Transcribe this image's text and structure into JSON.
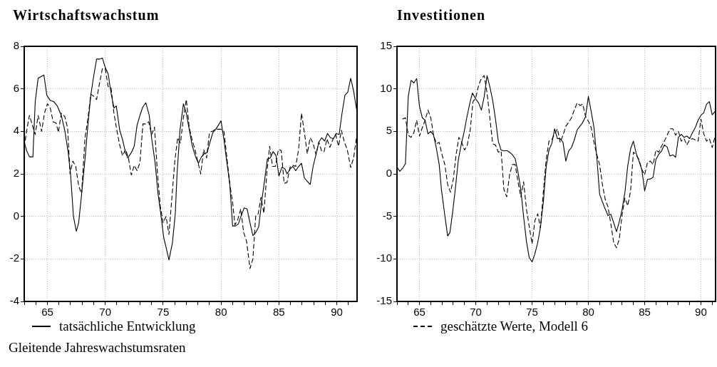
{
  "chart_data": [
    {
      "type": "line",
      "title": "Wirtschaftswachstum",
      "xlim": [
        63,
        91.75
      ],
      "ylim": [
        -4,
        8
      ],
      "xticks": [
        {
          "value": 63,
          "label": null
        },
        {
          "value": 64,
          "label": null
        },
        {
          "value": 65,
          "label": "65"
        },
        {
          "value": 66,
          "label": null
        },
        {
          "value": 67,
          "label": null
        },
        {
          "value": 68,
          "label": null
        },
        {
          "value": 69,
          "label": null
        },
        {
          "value": 70,
          "label": "70"
        },
        {
          "value": 71,
          "label": null
        },
        {
          "value": 72,
          "label": null
        },
        {
          "value": 73,
          "label": null
        },
        {
          "value": 74,
          "label": null
        },
        {
          "value": 75,
          "label": "75"
        },
        {
          "value": 76,
          "label": null
        },
        {
          "value": 77,
          "label": null
        },
        {
          "value": 78,
          "label": null
        },
        {
          "value": 79,
          "label": null
        },
        {
          "value": 80,
          "label": "80"
        },
        {
          "value": 81,
          "label": null
        },
        {
          "value": 82,
          "label": null
        },
        {
          "value": 83,
          "label": null
        },
        {
          "value": 84,
          "label": null
        },
        {
          "value": 85,
          "label": "85"
        },
        {
          "value": 86,
          "label": null
        },
        {
          "value": 87,
          "label": null
        },
        {
          "value": 88,
          "label": null
        },
        {
          "value": 89,
          "label": null
        },
        {
          "value": 90,
          "label": "90"
        },
        {
          "value": 91,
          "label": null
        }
      ],
      "yticks": [
        -4,
        -2,
        0,
        2,
        4,
        6,
        8
      ],
      "grid": true,
      "legend": "bottom",
      "marker": "none",
      "annotations": [
        "Gleitende Jahreswachstumsraten"
      ],
      "series": [
        {
          "name": "tatsächliche Entwicklung",
          "color": "#000000",
          "line_style": "solid",
          "x": [
            63.0,
            63.2,
            63.45,
            63.75,
            63.95,
            64.2,
            64.7,
            64.95,
            65.25,
            65.55,
            65.85,
            66.2,
            66.5,
            66.8,
            67.0,
            67.25,
            67.5,
            67.7,
            67.95,
            68.25,
            68.5,
            68.75,
            69.0,
            69.25,
            69.5,
            69.75,
            70.0,
            70.25,
            70.5,
            70.75,
            70.95,
            71.25,
            71.5,
            71.75,
            71.95,
            72.25,
            72.5,
            72.75,
            73.05,
            73.25,
            73.5,
            73.8,
            74.0,
            74.3,
            74.55,
            74.8,
            75.05,
            75.25,
            75.5,
            75.8,
            76.05,
            76.2,
            76.45,
            76.75,
            77.0,
            77.3,
            77.5,
            77.8,
            78.05,
            78.3,
            78.55,
            78.8,
            79.05,
            79.3,
            79.55,
            80.0,
            80.25,
            80.5,
            80.75,
            81.0,
            81.25,
            81.5,
            81.75,
            82.0,
            82.25,
            82.5,
            82.75,
            83.0,
            83.25,
            83.5,
            83.75,
            84.0,
            84.25,
            84.5,
            84.75,
            85.0,
            85.25,
            85.5,
            85.7,
            86.0,
            86.2,
            86.45,
            86.7,
            86.95,
            87.2,
            87.45,
            87.7,
            87.95,
            88.2,
            88.45,
            88.7,
            88.95,
            89.2,
            89.45,
            89.7,
            89.95,
            90.2,
            90.45,
            90.7,
            90.95,
            91.2,
            91.45,
            91.7
          ],
          "values": [
            3.5,
            3.1,
            2.8,
            2.8,
            5.4,
            6.5,
            6.65,
            5.7,
            5.45,
            5.4,
            5.2,
            4.75,
            4.05,
            3.0,
            2.0,
            0.0,
            -0.7,
            -0.3,
            1.0,
            2.7,
            4.3,
            5.7,
            6.6,
            7.4,
            7.4,
            7.45,
            7.0,
            6.7,
            5.8,
            5.1,
            5.2,
            4.05,
            3.6,
            3.0,
            2.75,
            3.0,
            3.3,
            4.3,
            4.85,
            5.15,
            5.35,
            4.75,
            3.7,
            2.55,
            1.1,
            0.1,
            -1.0,
            -1.45,
            -2.05,
            -1.25,
            0.15,
            2.0,
            4.05,
            5.3,
            4.85,
            3.95,
            3.35,
            2.8,
            2.5,
            2.8,
            2.95,
            3.0,
            3.5,
            3.95,
            4.1,
            4.5,
            3.6,
            2.55,
            1.55,
            -0.45,
            -0.45,
            -0.35,
            0.05,
            0.4,
            0.35,
            -0.3,
            -0.9,
            -0.75,
            -0.5,
            0.65,
            1.65,
            2.7,
            2.75,
            3.05,
            2.85,
            1.9,
            2.3,
            2.25,
            2.0,
            2.25,
            2.35,
            2.15,
            2.35,
            2.5,
            1.8,
            1.65,
            1.5,
            2.35,
            2.9,
            3.5,
            3.7,
            3.55,
            3.9,
            3.7,
            3.65,
            3.9,
            3.85,
            4.85,
            5.7,
            5.85,
            6.5,
            5.9,
            5.05
          ]
        },
        {
          "name": "geschätzte Werte, Modell 6",
          "color": "#000000",
          "line_style": "dashed",
          "x": [
            63.0,
            63.2,
            63.45,
            63.7,
            63.95,
            64.2,
            64.5,
            64.75,
            65.0,
            65.25,
            65.5,
            65.75,
            65.95,
            66.2,
            66.5,
            66.75,
            66.95,
            67.2,
            67.45,
            67.7,
            67.95,
            68.25,
            68.5,
            68.75,
            69.0,
            69.25,
            69.5,
            69.75,
            70.0,
            70.25,
            70.5,
            70.75,
            71.0,
            71.25,
            71.5,
            71.75,
            72.0,
            72.25,
            72.5,
            72.75,
            73.0,
            73.25,
            73.5,
            73.75,
            74.0,
            74.25,
            74.5,
            74.75,
            75.0,
            75.25,
            75.5,
            75.75,
            76.0,
            76.25,
            76.5,
            76.75,
            77.0,
            77.25,
            77.5,
            77.75,
            78.0,
            78.25,
            78.5,
            78.75,
            79.0,
            79.25,
            79.5,
            79.75,
            80.0,
            80.25,
            80.5,
            80.75,
            81.0,
            81.2,
            81.45,
            81.7,
            81.95,
            82.2,
            82.5,
            82.75,
            83.0,
            83.2,
            83.45,
            83.7,
            83.95,
            84.2,
            84.45,
            84.7,
            84.95,
            85.2,
            85.45,
            85.7,
            85.95,
            86.2,
            86.45,
            86.7,
            86.95,
            87.2,
            87.45,
            87.7,
            87.95,
            88.2,
            88.45,
            88.7,
            88.9,
            89.15,
            89.4,
            89.65,
            89.9,
            90.15,
            90.4,
            90.65,
            90.9,
            91.2,
            91.45,
            91.7
          ],
          "values": [
            3.25,
            4.0,
            4.75,
            4.3,
            3.85,
            4.75,
            4.0,
            4.85,
            5.3,
            5.1,
            4.45,
            4.4,
            3.95,
            4.85,
            4.7,
            4.15,
            2.0,
            2.6,
            2.35,
            1.45,
            1.05,
            3.7,
            4.6,
            5.75,
            5.65,
            5.5,
            6.25,
            6.95,
            6.95,
            6.1,
            6.05,
            4.85,
            4.05,
            3.35,
            2.85,
            3.15,
            2.75,
            1.95,
            2.4,
            2.15,
            2.55,
            4.35,
            4.35,
            4.45,
            3.85,
            4.2,
            2.1,
            0.5,
            -0.3,
            0.0,
            -0.85,
            0.85,
            2.55,
            3.7,
            3.45,
            4.65,
            5.5,
            4.2,
            3.6,
            3.15,
            2.55,
            2.0,
            3.15,
            2.75,
            3.95,
            4.0,
            4.1,
            4.1,
            4.1,
            4.0,
            2.8,
            1.55,
            0.65,
            -0.4,
            -0.15,
            0.35,
            -0.75,
            -1.15,
            -2.45,
            -2.0,
            0.05,
            0.1,
            0.9,
            0.15,
            2.0,
            3.3,
            2.35,
            2.35,
            3.15,
            3.1,
            1.55,
            1.6,
            2.3,
            2.4,
            2.35,
            3.15,
            4.85,
            3.95,
            2.95,
            3.7,
            3.45,
            2.9,
            3.5,
            3.05,
            3.05,
            3.65,
            3.25,
            3.6,
            3.85,
            3.3,
            4.05,
            3.5,
            3.15,
            2.3,
            2.75,
            3.7
          ]
        }
      ]
    },
    {
      "type": "line",
      "title": "Investitionen",
      "xlim": [
        63,
        91.3
      ],
      "ylim": [
        -15,
        15
      ],
      "xticks": [
        {
          "value": 63,
          "label": null
        },
        {
          "value": 64,
          "label": null
        },
        {
          "value": 65,
          "label": "65"
        },
        {
          "value": 66,
          "label": null
        },
        {
          "value": 67,
          "label": null
        },
        {
          "value": 68,
          "label": null
        },
        {
          "value": 69,
          "label": null
        },
        {
          "value": 70,
          "label": "70"
        },
        {
          "value": 71,
          "label": null
        },
        {
          "value": 72,
          "label": null
        },
        {
          "value": 73,
          "label": null
        },
        {
          "value": 74,
          "label": null
        },
        {
          "value": 75,
          "label": "75"
        },
        {
          "value": 76,
          "label": null
        },
        {
          "value": 77,
          "label": null
        },
        {
          "value": 78,
          "label": null
        },
        {
          "value": 79,
          "label": null
        },
        {
          "value": 80,
          "label": "80"
        },
        {
          "value": 81,
          "label": null
        },
        {
          "value": 82,
          "label": null
        },
        {
          "value": 83,
          "label": null
        },
        {
          "value": 84,
          "label": null
        },
        {
          "value": 85,
          "label": "85"
        },
        {
          "value": 86,
          "label": null
        },
        {
          "value": 87,
          "label": null
        },
        {
          "value": 88,
          "label": null
        },
        {
          "value": 89,
          "label": null
        },
        {
          "value": 90,
          "label": "90"
        },
        {
          "value": 91,
          "label": null
        }
      ],
      "yticks": [
        -15,
        -10,
        -5,
        0,
        5,
        10,
        15
      ],
      "grid": true,
      "marker": "none",
      "series": [
        {
          "color": "#000000",
          "line_style": "solid",
          "x": [
            63.0,
            63.25,
            63.5,
            63.75,
            64.0,
            64.25,
            64.5,
            64.75,
            65.0,
            65.25,
            65.5,
            65.75,
            66.0,
            66.25,
            66.5,
            66.75,
            66.95,
            67.25,
            67.5,
            67.7,
            67.95,
            68.2,
            68.45,
            68.7,
            68.95,
            69.2,
            69.5,
            69.7,
            70.0,
            70.25,
            70.5,
            70.75,
            71.0,
            71.25,
            71.5,
            71.75,
            72.0,
            72.25,
            72.5,
            72.75,
            73.0,
            73.25,
            73.5,
            73.75,
            74.0,
            74.25,
            74.5,
            74.75,
            75.0,
            75.25,
            75.5,
            75.75,
            76.0,
            76.25,
            76.5,
            76.75,
            77.0,
            77.25,
            77.5,
            77.75,
            78.0,
            78.25,
            78.5,
            78.75,
            79.0,
            79.25,
            79.5,
            79.75,
            80.0,
            80.25,
            80.5,
            80.75,
            81.0,
            81.25,
            81.5,
            81.75,
            82.0,
            82.25,
            82.5,
            82.75,
            83.0,
            83.25,
            83.5,
            83.75,
            84.0,
            84.25,
            84.5,
            84.75,
            85.0,
            85.25,
            85.5,
            85.75,
            86.0,
            86.25,
            86.5,
            86.75,
            87.0,
            87.25,
            87.5,
            87.75,
            88.0,
            88.25,
            88.5,
            88.75,
            89.0,
            89.25,
            89.5,
            89.75,
            90.0,
            90.25,
            90.5,
            90.75,
            91.0,
            91.25
          ],
          "values": [
            0.8,
            0.3,
            0.65,
            1.2,
            9.1,
            11.0,
            10.7,
            11.2,
            7.9,
            6.6,
            6.3,
            4.7,
            5.0,
            4.55,
            3.0,
            1.1,
            -1.85,
            -4.9,
            -7.3,
            -6.9,
            -4.45,
            -1.55,
            1.65,
            3.4,
            4.85,
            6.6,
            8.5,
            9.5,
            8.8,
            8.35,
            7.5,
            9.1,
            11.55,
            10.25,
            8.65,
            6.45,
            3.85,
            2.8,
            2.7,
            2.75,
            2.55,
            2.25,
            1.8,
            0.2,
            -1.85,
            -5.05,
            -7.95,
            -9.85,
            -10.35,
            -9.4,
            -8.1,
            -6.2,
            -3.3,
            0.8,
            2.8,
            3.55,
            5.3,
            4.15,
            4.15,
            3.7,
            1.5,
            2.7,
            3.1,
            4.0,
            5.15,
            5.6,
            6.05,
            6.75,
            9.1,
            7.35,
            5.45,
            1.95,
            -2.4,
            -3.3,
            -4.15,
            -4.9,
            -4.75,
            -5.75,
            -6.8,
            -5.6,
            -4.15,
            -2.15,
            0.95,
            2.95,
            3.85,
            2.4,
            1.5,
            0.5,
            -2.0,
            -0.65,
            -0.6,
            -0.4,
            1.7,
            2.3,
            2.7,
            3.4,
            3.15,
            2.1,
            2.25,
            1.95,
            4.3,
            4.65,
            4.3,
            4.45,
            4.15,
            4.85,
            5.45,
            6.3,
            6.9,
            7.2,
            8.2,
            8.5,
            6.95,
            7.35
          ]
        },
        {
          "color": "#000000",
          "line_style": "dashed",
          "x": [
            63.5,
            63.75,
            64.0,
            64.25,
            64.5,
            64.75,
            65.0,
            65.25,
            65.5,
            65.75,
            66.0,
            66.25,
            66.5,
            66.75,
            67.0,
            67.25,
            67.5,
            67.75,
            68.0,
            68.25,
            68.5,
            68.75,
            69.0,
            69.25,
            69.5,
            69.75,
            70.0,
            70.25,
            70.5,
            70.75,
            71.0,
            71.25,
            71.5,
            71.75,
            72.0,
            72.25,
            72.5,
            72.75,
            73.0,
            73.25,
            73.5,
            73.75,
            74.0,
            74.25,
            74.5,
            74.75,
            75.0,
            75.25,
            75.5,
            75.75,
            76.0,
            76.25,
            76.5,
            76.75,
            77.0,
            77.25,
            77.5,
            77.75,
            78.0,
            78.25,
            78.5,
            78.75,
            79.0,
            79.25,
            79.5,
            79.75,
            80.0,
            80.25,
            80.5,
            80.75,
            81.0,
            81.25,
            81.5,
            81.75,
            82.0,
            82.25,
            82.5,
            82.75,
            83.0,
            83.25,
            83.5,
            83.75,
            84.0,
            84.25,
            84.5,
            84.75,
            85.0,
            85.25,
            85.5,
            85.75,
            86.0,
            86.25,
            86.5,
            86.75,
            87.0,
            87.25,
            87.5,
            87.75,
            88.0,
            88.25,
            88.5,
            88.75,
            89.0,
            89.25,
            89.5,
            89.75,
            90.0,
            90.25,
            90.5,
            90.75,
            91.0,
            91.25
          ],
          "values": [
            6.45,
            6.6,
            4.55,
            4.3,
            4.85,
            6.3,
            4.45,
            5.45,
            6.3,
            7.5,
            6.6,
            4.55,
            3.55,
            3.7,
            2.25,
            1.1,
            -1.25,
            -2.15,
            -0.65,
            2.25,
            4.3,
            3.7,
            2.8,
            3.4,
            5.15,
            8.5,
            8.95,
            10.4,
            11.25,
            11.55,
            9.5,
            6.6,
            3.55,
            3.4,
            2.55,
            2.7,
            -1.85,
            -2.7,
            -0.1,
            1.1,
            1.1,
            -0.95,
            -2.7,
            -0.95,
            -4.15,
            -6.2,
            -8.25,
            -5.5,
            -4.7,
            -6.35,
            -2.1,
            1.65,
            3.85,
            4.0,
            4.7,
            5.3,
            3.7,
            4.55,
            5.6,
            6.05,
            6.6,
            7.5,
            8.35,
            8.05,
            8.2,
            6.75,
            6.2,
            5.45,
            3.7,
            2.25,
            1.1,
            -1.25,
            -3.0,
            -3.9,
            -5.9,
            -8.1,
            -8.7,
            -7.65,
            -4.75,
            -2.85,
            -3.75,
            -2.0,
            2.55,
            2.25,
            1.65,
            0.5,
            -0.1,
            1.35,
            1.5,
            1.1,
            2.8,
            2.55,
            3.25,
            3.85,
            4.55,
            5.3,
            5.3,
            4.55,
            5.0,
            3.85,
            4.15,
            3.4,
            4.0,
            4.15,
            4.0,
            3.85,
            6.45,
            4.7,
            3.85,
            4.15,
            3.1,
            4.4
          ]
        }
      ]
    }
  ]
}
